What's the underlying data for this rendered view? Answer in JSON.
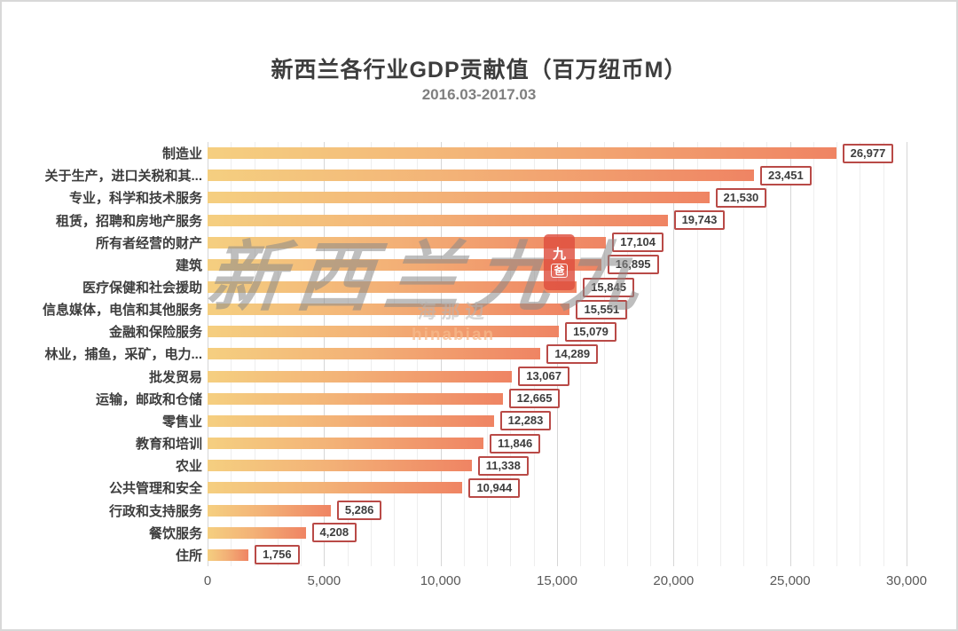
{
  "chart_data": {
    "type": "bar",
    "orientation": "horizontal",
    "title": "新西兰各行业GDP贡献值（百万纽币M）",
    "subtitle": "2016.03-2017.03",
    "categories": [
      "制造业",
      "关于生产，进口关税和其...",
      "专业，科学和技术服务",
      "租赁，招聘和房地产服务",
      "所有者经营的财产",
      "建筑",
      "医疗保健和社会援助",
      "信息媒体，电信和其他服务",
      "金融和保险服务",
      "林业，捕鱼，采矿，电力...",
      "批发贸易",
      "运输，邮政和仓储",
      "零售业",
      "教育和培训",
      "农业",
      "公共管理和安全",
      "行政和支持服务",
      "餐饮服务",
      "住所"
    ],
    "values": [
      26977,
      23451,
      21530,
      19743,
      17104,
      16895,
      15845,
      15551,
      15079,
      14289,
      13067,
      12665,
      12283,
      11846,
      11338,
      10944,
      5286,
      4208,
      1756
    ],
    "value_labels": [
      "26,977",
      "23,451",
      "21,530",
      "19,743",
      "17,104",
      "16,895",
      "15,845",
      "15,551",
      "15,079",
      "14,289",
      "13,067",
      "12,665",
      "12,283",
      "11,846",
      "11,338",
      "10,944",
      "5,286",
      "4,208",
      "1,756"
    ],
    "xlabel": "",
    "ylabel": "",
    "xlim": [
      0,
      30000
    ],
    "x_ticks": [
      0,
      5000,
      10000,
      15000,
      20000,
      25000,
      30000
    ],
    "x_tick_labels": [
      "0",
      "5,000",
      "10,000",
      "15,000",
      "20,000",
      "25,000",
      "30,000"
    ],
    "grid": "vertical minor every 1,000, major every 5,000",
    "legend": "none",
    "bar_gradient_start": "#f5cf80",
    "bar_gradient_end": "#ef8463",
    "value_box_border_color": "#b94a47",
    "text_color": "#3d3d3d"
  },
  "watermark": {
    "calligraphy_text": "新西兰九九",
    "brand_text": "海那边",
    "brand_subtext": "hinabian",
    "seal_text_top": "九",
    "seal_text_bottom": "爸",
    "seal_color": "#de4e3e"
  }
}
